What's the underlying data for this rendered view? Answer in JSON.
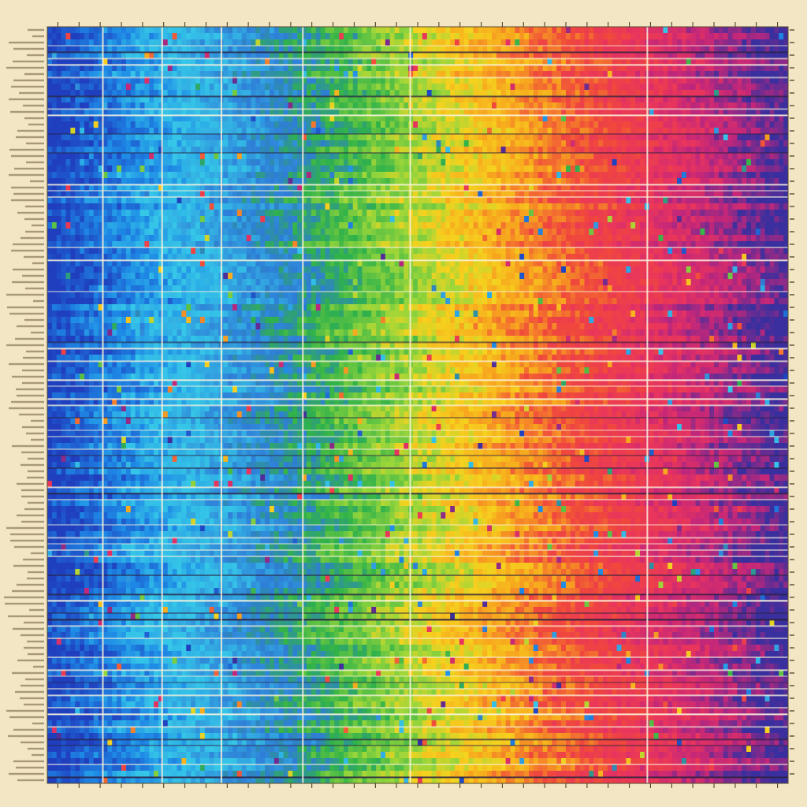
{
  "chart_data": {
    "type": "heatmap",
    "title": "",
    "xlabel": "",
    "ylabel": "",
    "grid": true,
    "legend": "none",
    "num_rows": 120,
    "num_columns": 160,
    "x_ticks": [
      "",
      "",
      "",
      "",
      "",
      "",
      "",
      "",
      "",
      "",
      "",
      "",
      "",
      "",
      "",
      "",
      "",
      "",
      "",
      "",
      "",
      "",
      "",
      "",
      "",
      "",
      "",
      "",
      "",
      "",
      "",
      "",
      "",
      "",
      ""
    ],
    "row_labels": [],
    "color_scale": [
      {
        "stop": 0.0,
        "color": "#1f3fbf"
      },
      {
        "stop": 0.1,
        "color": "#1e88e5"
      },
      {
        "stop": 0.18,
        "color": "#35c7e8"
      },
      {
        "stop": 0.3,
        "color": "#2e7dd7"
      },
      {
        "stop": 0.38,
        "color": "#2fb24a"
      },
      {
        "stop": 0.48,
        "color": "#9ad63a"
      },
      {
        "stop": 0.55,
        "color": "#f6d21e"
      },
      {
        "stop": 0.63,
        "color": "#f7a51e"
      },
      {
        "stop": 0.72,
        "color": "#f0483c"
      },
      {
        "stop": 0.82,
        "color": "#e8345e"
      },
      {
        "stop": 0.9,
        "color": "#c2277a"
      },
      {
        "stop": 1.0,
        "color": "#3a2f9e"
      }
    ],
    "column_breaks": [
      0.075,
      0.155,
      0.235,
      0.345,
      0.49,
      0.81
    ],
    "seed": 1337
  }
}
